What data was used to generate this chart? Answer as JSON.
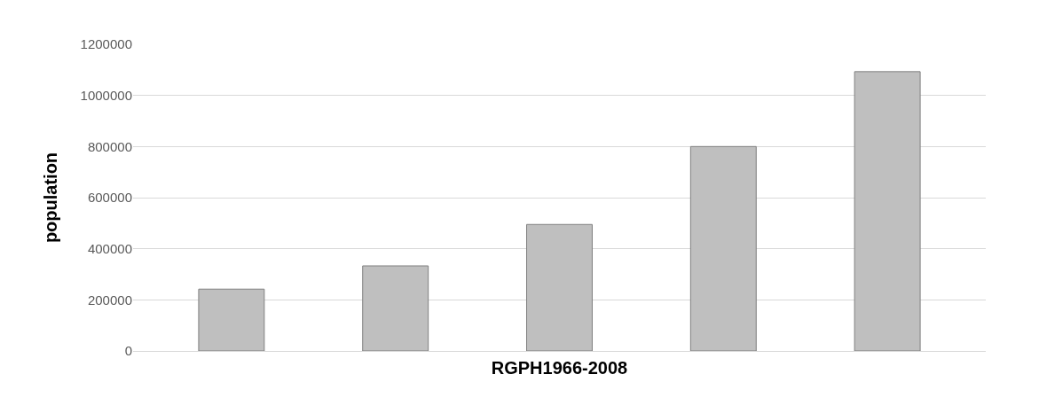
{
  "chart_data": {
    "type": "bar",
    "xlabel": "RGPH1966-2008",
    "ylabel": "population",
    "categories": [
      null,
      null,
      null,
      null,
      null
    ],
    "values": [
      242000,
      333000,
      495000,
      800000,
      1093000
    ],
    "color": "#bfbfbf",
    "ylim": [
      0,
      1200000
    ],
    "yticks": [
      0,
      200000,
      400000,
      600000,
      800000,
      1000000,
      1200000
    ],
    "grid": "y"
  }
}
